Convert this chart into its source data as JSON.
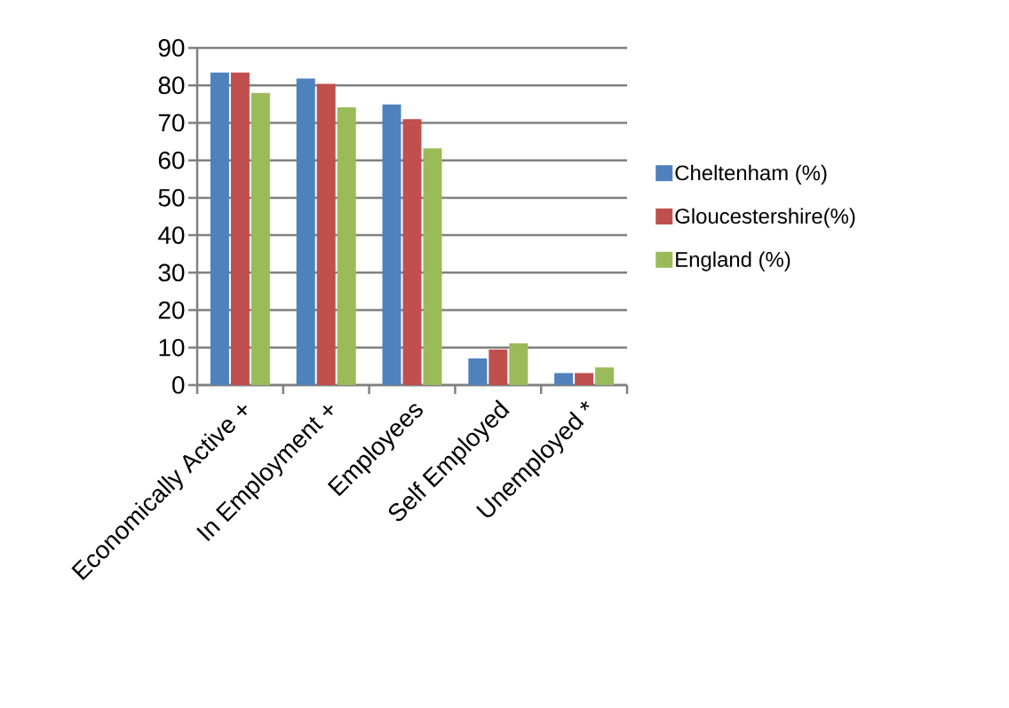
{
  "chart_data": {
    "type": "bar",
    "categories": [
      "Economically Active +",
      "In Employment +",
      "Employees",
      "Self Employed",
      "Unemployed *"
    ],
    "series": [
      {
        "name": "Cheltenham (%)",
        "color": "#4f81bd",
        "values": [
          83.4,
          81.8,
          74.9,
          7.1,
          3.2
        ]
      },
      {
        "name": "Gloucestershire(%)",
        "color": "#c0504d",
        "values": [
          83.4,
          80.4,
          71.0,
          9.5,
          3.2
        ]
      },
      {
        "name": "England (%)",
        "color": "#9bbb59",
        "values": [
          78.0,
          74.1,
          63.2,
          11.1,
          4.7
        ]
      }
    ],
    "ylim": [
      0,
      90
    ],
    "yticks": [
      0,
      10,
      20,
      30,
      40,
      50,
      60,
      70,
      80,
      90
    ],
    "grid": "y",
    "legend": "right"
  }
}
